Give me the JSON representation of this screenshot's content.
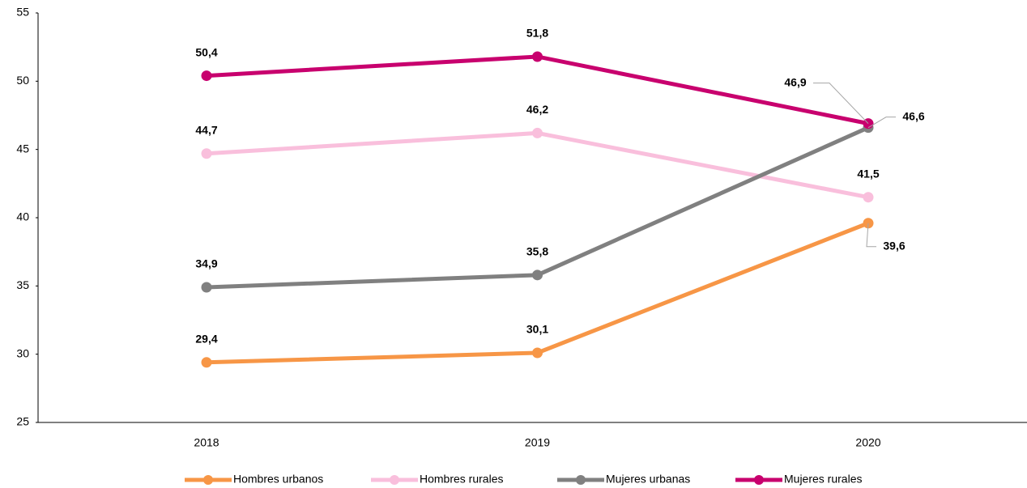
{
  "chart_data": {
    "type": "line",
    "categories": [
      "2018",
      "2019",
      "2020"
    ],
    "series": [
      {
        "name": "Hombres urbanos",
        "color": "#f79646",
        "values": [
          29.4,
          30.1,
          39.6
        ],
        "value_labels": [
          "29,4",
          "30,1",
          "39,6"
        ]
      },
      {
        "name": "Hombres rurales",
        "color": "#f9bfdc",
        "values": [
          44.7,
          46.2,
          41.5
        ],
        "value_labels": [
          "44,7",
          "46,2",
          "41,5"
        ]
      },
      {
        "name": "Mujeres urbanas",
        "color": "#808080",
        "values": [
          34.9,
          35.8,
          46.6
        ],
        "value_labels": [
          "34,9",
          "35,8",
          "46,6"
        ]
      },
      {
        "name": "Mujeres rurales",
        "color": "#c8006e",
        "values": [
          50.4,
          51.8,
          46.9
        ],
        "value_labels": [
          "50,4",
          "51,8",
          "46,9"
        ]
      }
    ],
    "ylim": [
      25,
      55
    ],
    "yticks": [
      25,
      30,
      35,
      40,
      45,
      50,
      55
    ],
    "grid": false,
    "legend": "bottom"
  }
}
